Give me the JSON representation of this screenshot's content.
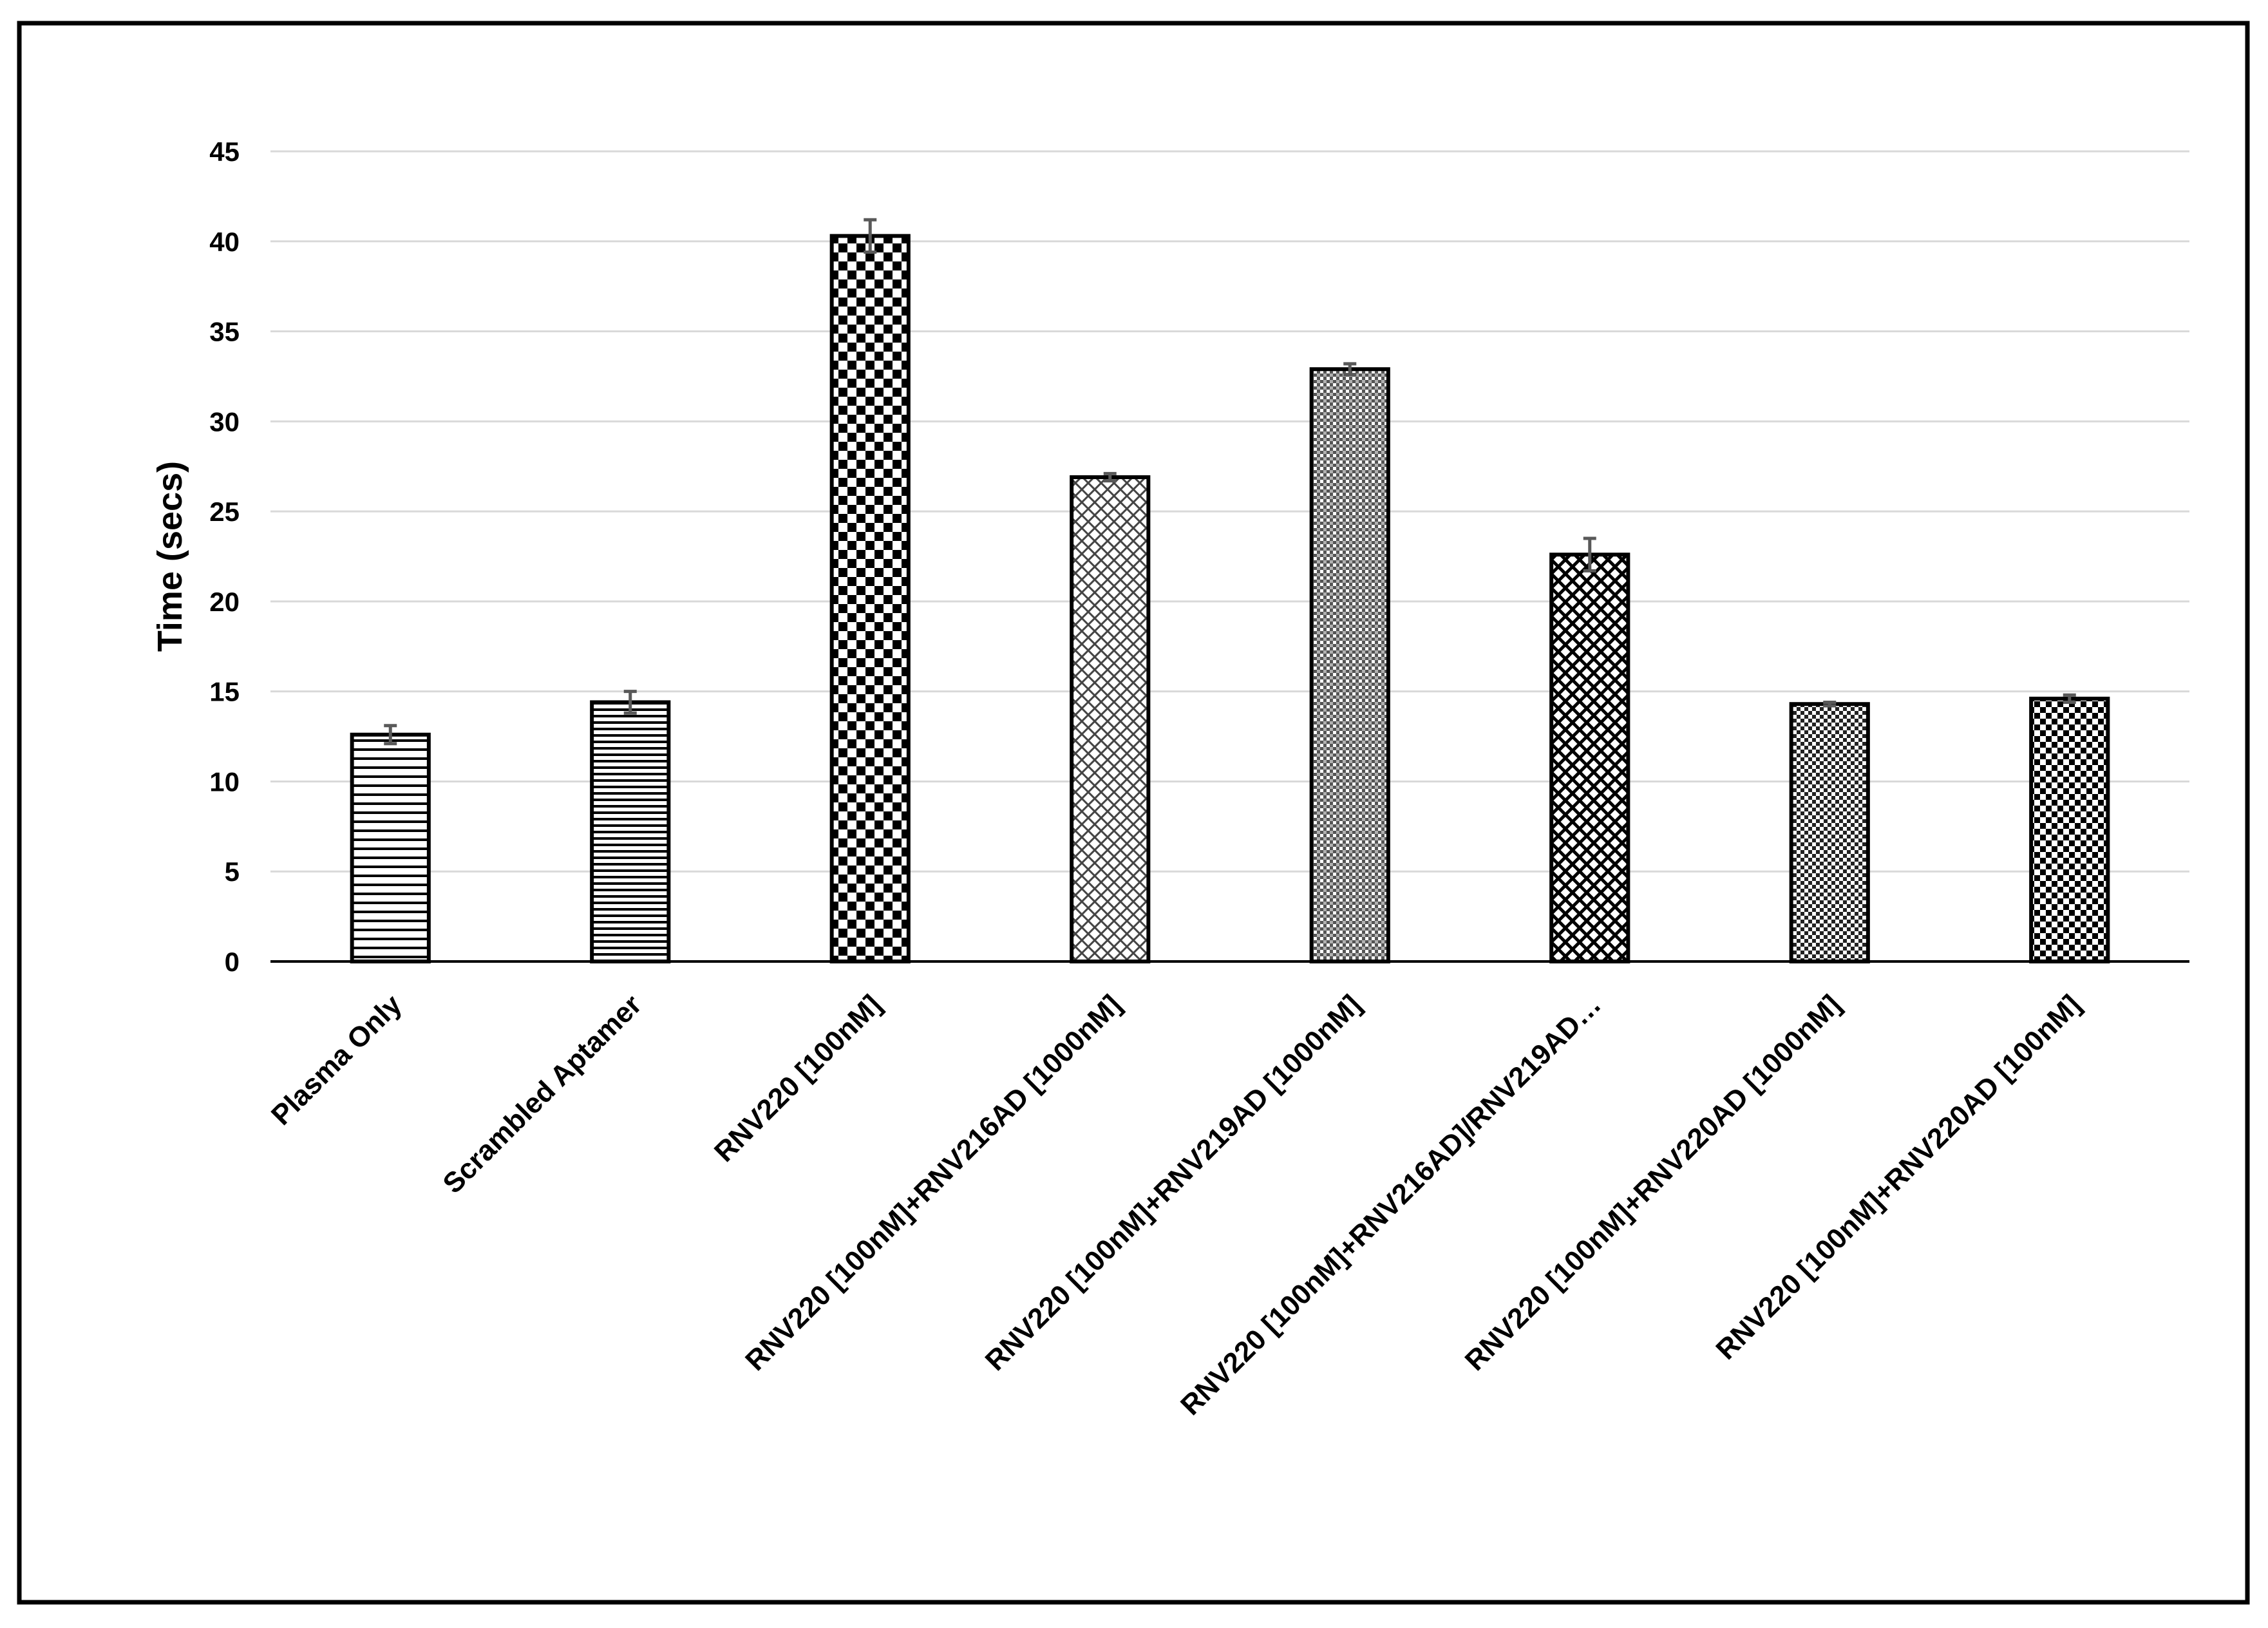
{
  "chart_data": {
    "type": "bar",
    "title": "",
    "xlabel": "",
    "ylabel": "Time (secs)",
    "ylim": [
      0,
      45
    ],
    "yticks": [
      0,
      5,
      10,
      15,
      20,
      25,
      30,
      35,
      40,
      45
    ],
    "grid": true,
    "legend": "none",
    "categories": [
      "Plasma Only",
      "Scrambled Aptamer",
      "RNV220 [100nM]",
      "RNV220 [100nM]+RNV216AD [1000nM]",
      "RNV220 [100nM]+RNV219AD [1000nM]",
      "RNV220 [100nM]+RNV216AD]/RNV219AD…",
      "RNV220 [100nM]+RNV220AD [1000nM]",
      "RNV220 [100nM]+RNV220AD [100nM]"
    ],
    "series": [
      {
        "values": [
          12.6,
          14.4,
          40.3,
          26.9,
          32.9,
          22.6,
          14.3,
          14.6
        ],
        "error": [
          0.5,
          0.6,
          0.9,
          0.2,
          0.3,
          0.9,
          0.1,
          0.2
        ]
      }
    ],
    "patterns": [
      "hlines",
      "hlines-dense",
      "checker-large",
      "diamond-grid",
      "dots-fine",
      "diamond-dark",
      "checker-small",
      "checker-medium"
    ],
    "colors": {
      "bar_stroke": "#000000",
      "grid": "#d9d9d9",
      "axis": "#000000",
      "error_bar": "#595959",
      "frame": "#000000"
    }
  }
}
